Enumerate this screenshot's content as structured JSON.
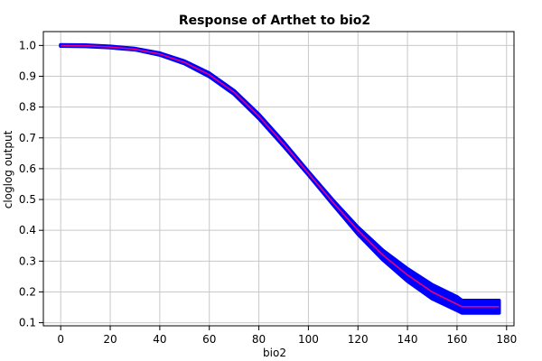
{
  "chart_data": {
    "type": "line",
    "title": "Response of Arthet to bio2",
    "xlabel": "bio2",
    "ylabel": "cloglog output",
    "xlim": [
      -7,
      183
    ],
    "ylim": [
      0.09,
      1.045
    ],
    "xticks": [
      0,
      20,
      40,
      60,
      80,
      100,
      120,
      140,
      160,
      180
    ],
    "yticks": [
      0.1,
      0.2,
      0.3,
      0.4,
      0.5,
      0.6,
      0.7,
      0.8,
      0.9,
      1.0
    ],
    "xtick_labels": [
      "0",
      "20",
      "40",
      "60",
      "80",
      "100",
      "120",
      "140",
      "160",
      "180"
    ],
    "ytick_labels": [
      "0.1",
      "0.2",
      "0.3",
      "0.4",
      "0.5",
      "0.6",
      "0.7",
      "0.8",
      "0.9",
      "1.0"
    ],
    "grid": true,
    "colors": {
      "band": "#0000ff",
      "mean": "#e8007a",
      "grid": "#c8c8c8"
    },
    "series": [
      {
        "role": "mean",
        "x": [
          0,
          10,
          20,
          30,
          40,
          50,
          60,
          70,
          80,
          90,
          100,
          110,
          120,
          130,
          140,
          150,
          160,
          162,
          177
        ],
        "y": [
          1.0,
          0.999,
          0.995,
          0.988,
          0.972,
          0.945,
          0.905,
          0.848,
          0.77,
          0.68,
          0.585,
          0.49,
          0.4,
          0.32,
          0.255,
          0.2,
          0.16,
          0.152,
          0.152
        ]
      },
      {
        "role": "band_upper",
        "x": [
          0,
          10,
          20,
          30,
          40,
          50,
          60,
          70,
          80,
          90,
          100,
          110,
          120,
          130,
          140,
          150,
          160,
          162,
          177
        ],
        "y": [
          1.002,
          1.001,
          0.997,
          0.99,
          0.975,
          0.949,
          0.91,
          0.853,
          0.776,
          0.686,
          0.59,
          0.497,
          0.41,
          0.335,
          0.275,
          0.223,
          0.184,
          0.172,
          0.172
        ]
      },
      {
        "role": "band_lower",
        "x": [
          0,
          10,
          20,
          30,
          40,
          50,
          60,
          70,
          80,
          90,
          100,
          110,
          120,
          130,
          140,
          150,
          160,
          162,
          177
        ],
        "y": [
          0.998,
          0.997,
          0.993,
          0.986,
          0.969,
          0.941,
          0.899,
          0.842,
          0.763,
          0.673,
          0.58,
          0.483,
          0.388,
          0.305,
          0.235,
          0.178,
          0.14,
          0.132,
          0.132
        ]
      }
    ]
  }
}
